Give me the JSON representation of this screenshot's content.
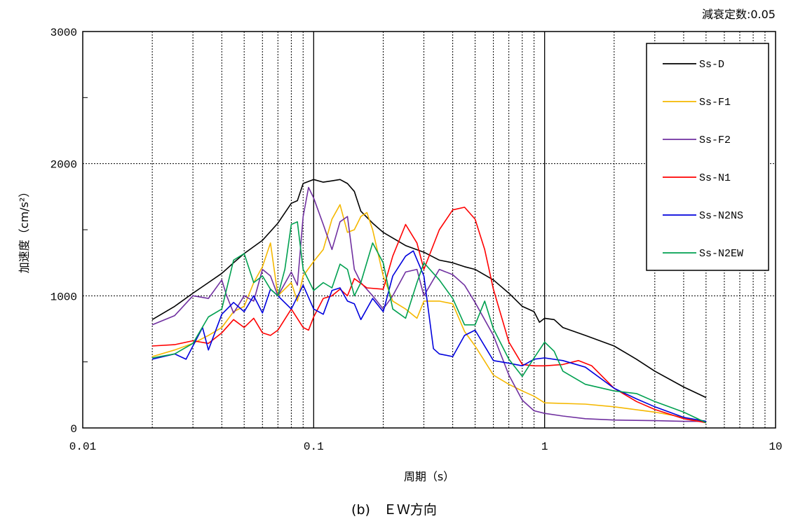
{
  "chart_data": {
    "type": "line",
    "title": "",
    "annotation": "減衰定数:0.05",
    "caption": "(b)　ＥＷ方向",
    "xlabel": "周期（s）",
    "ylabel": "加速度（cm/s²）",
    "xscale": "log",
    "xlim": [
      0.01,
      10
    ],
    "ylim": [
      0,
      3000
    ],
    "x_ticks": [
      "0.01",
      "0.1",
      "1",
      "10"
    ],
    "y_ticks": [
      "0",
      "1000",
      "2000",
      "3000"
    ],
    "grid": true,
    "legend_position": "top-right",
    "series": [
      {
        "name": "Ss-D",
        "color": "#000000",
        "points": [
          [
            0.02,
            820
          ],
          [
            0.025,
            920
          ],
          [
            0.03,
            1020
          ],
          [
            0.035,
            1100
          ],
          [
            0.04,
            1170
          ],
          [
            0.045,
            1250
          ],
          [
            0.05,
            1320
          ],
          [
            0.06,
            1420
          ],
          [
            0.07,
            1550
          ],
          [
            0.08,
            1700
          ],
          [
            0.085,
            1720
          ],
          [
            0.09,
            1850
          ],
          [
            0.1,
            1880
          ],
          [
            0.11,
            1860
          ],
          [
            0.12,
            1870
          ],
          [
            0.13,
            1880
          ],
          [
            0.14,
            1850
          ],
          [
            0.15,
            1790
          ],
          [
            0.16,
            1640
          ],
          [
            0.18,
            1550
          ],
          [
            0.2,
            1480
          ],
          [
            0.25,
            1380
          ],
          [
            0.3,
            1330
          ],
          [
            0.35,
            1270
          ],
          [
            0.4,
            1250
          ],
          [
            0.45,
            1220
          ],
          [
            0.5,
            1200
          ],
          [
            0.6,
            1120
          ],
          [
            0.7,
            1020
          ],
          [
            0.8,
            920
          ],
          [
            0.9,
            880
          ],
          [
            0.95,
            800
          ],
          [
            1.0,
            830
          ],
          [
            1.1,
            820
          ],
          [
            1.2,
            760
          ],
          [
            1.5,
            700
          ],
          [
            2.0,
            620
          ],
          [
            2.5,
            520
          ],
          [
            3.0,
            430
          ],
          [
            4.0,
            310
          ],
          [
            5.0,
            230
          ]
        ]
      },
      {
        "name": "Ss-F1",
        "color": "#f5b800",
        "points": [
          [
            0.02,
            540
          ],
          [
            0.025,
            590
          ],
          [
            0.03,
            640
          ],
          [
            0.035,
            700
          ],
          [
            0.04,
            760
          ],
          [
            0.045,
            880
          ],
          [
            0.05,
            920
          ],
          [
            0.055,
            1100
          ],
          [
            0.06,
            1220
          ],
          [
            0.065,
            1400
          ],
          [
            0.07,
            1000
          ],
          [
            0.08,
            1100
          ],
          [
            0.085,
            960
          ],
          [
            0.09,
            1150
          ],
          [
            0.1,
            1260
          ],
          [
            0.11,
            1350
          ],
          [
            0.12,
            1580
          ],
          [
            0.13,
            1690
          ],
          [
            0.14,
            1480
          ],
          [
            0.15,
            1500
          ],
          [
            0.16,
            1600
          ],
          [
            0.17,
            1630
          ],
          [
            0.18,
            1500
          ],
          [
            0.2,
            1150
          ],
          [
            0.22,
            960
          ],
          [
            0.25,
            900
          ],
          [
            0.28,
            830
          ],
          [
            0.3,
            960
          ],
          [
            0.35,
            960
          ],
          [
            0.4,
            940
          ],
          [
            0.45,
            730
          ],
          [
            0.5,
            620
          ],
          [
            0.6,
            400
          ],
          [
            0.7,
            330
          ],
          [
            0.8,
            280
          ],
          [
            0.9,
            240
          ],
          [
            1.0,
            190
          ],
          [
            1.5,
            180
          ],
          [
            2.0,
            160
          ],
          [
            3.0,
            120
          ],
          [
            4.0,
            80
          ],
          [
            5.0,
            40
          ]
        ]
      },
      {
        "name": "Ss-F2",
        "color": "#7030a0",
        "points": [
          [
            0.02,
            780
          ],
          [
            0.025,
            850
          ],
          [
            0.03,
            1000
          ],
          [
            0.035,
            980
          ],
          [
            0.04,
            1120
          ],
          [
            0.042,
            1000
          ],
          [
            0.045,
            870
          ],
          [
            0.05,
            1000
          ],
          [
            0.055,
            960
          ],
          [
            0.06,
            1200
          ],
          [
            0.065,
            1150
          ],
          [
            0.07,
            1000
          ],
          [
            0.08,
            1180
          ],
          [
            0.085,
            1080
          ],
          [
            0.09,
            1600
          ],
          [
            0.095,
            1820
          ],
          [
            0.1,
            1740
          ],
          [
            0.11,
            1540
          ],
          [
            0.12,
            1350
          ],
          [
            0.13,
            1560
          ],
          [
            0.14,
            1600
          ],
          [
            0.15,
            1200
          ],
          [
            0.16,
            1100
          ],
          [
            0.18,
            1000
          ],
          [
            0.2,
            900
          ],
          [
            0.22,
            1000
          ],
          [
            0.25,
            1180
          ],
          [
            0.28,
            1200
          ],
          [
            0.3,
            1000
          ],
          [
            0.35,
            1200
          ],
          [
            0.4,
            1160
          ],
          [
            0.45,
            1080
          ],
          [
            0.5,
            950
          ],
          [
            0.6,
            700
          ],
          [
            0.7,
            400
          ],
          [
            0.8,
            210
          ],
          [
            0.9,
            130
          ],
          [
            1.0,
            110
          ],
          [
            1.2,
            90
          ],
          [
            1.5,
            70
          ],
          [
            2.0,
            60
          ],
          [
            3.0,
            55
          ],
          [
            4.0,
            50
          ],
          [
            5.0,
            50
          ]
        ]
      },
      {
        "name": "Ss-N1",
        "color": "#ff0000",
        "points": [
          [
            0.02,
            620
          ],
          [
            0.025,
            630
          ],
          [
            0.03,
            660
          ],
          [
            0.035,
            640
          ],
          [
            0.04,
            720
          ],
          [
            0.045,
            820
          ],
          [
            0.05,
            760
          ],
          [
            0.055,
            830
          ],
          [
            0.06,
            720
          ],
          [
            0.065,
            700
          ],
          [
            0.07,
            740
          ],
          [
            0.08,
            900
          ],
          [
            0.09,
            760
          ],
          [
            0.095,
            740
          ],
          [
            0.1,
            840
          ],
          [
            0.11,
            980
          ],
          [
            0.12,
            1000
          ],
          [
            0.13,
            1050
          ],
          [
            0.14,
            1000
          ],
          [
            0.15,
            1130
          ],
          [
            0.17,
            1060
          ],
          [
            0.2,
            1050
          ],
          [
            0.22,
            1300
          ],
          [
            0.25,
            1540
          ],
          [
            0.28,
            1400
          ],
          [
            0.3,
            1200
          ],
          [
            0.35,
            1500
          ],
          [
            0.4,
            1650
          ],
          [
            0.45,
            1670
          ],
          [
            0.5,
            1580
          ],
          [
            0.55,
            1350
          ],
          [
            0.6,
            1050
          ],
          [
            0.7,
            650
          ],
          [
            0.8,
            480
          ],
          [
            0.9,
            470
          ],
          [
            1.0,
            470
          ],
          [
            1.2,
            480
          ],
          [
            1.4,
            510
          ],
          [
            1.6,
            470
          ],
          [
            2.0,
            300
          ],
          [
            2.5,
            200
          ],
          [
            3.0,
            140
          ],
          [
            4.0,
            70
          ],
          [
            5.0,
            40
          ]
        ]
      },
      {
        "name": "Ss-N2NS",
        "color": "#0000dd",
        "points": [
          [
            0.02,
            520
          ],
          [
            0.025,
            560
          ],
          [
            0.028,
            520
          ],
          [
            0.03,
            620
          ],
          [
            0.033,
            760
          ],
          [
            0.035,
            590
          ],
          [
            0.04,
            860
          ],
          [
            0.045,
            950
          ],
          [
            0.05,
            880
          ],
          [
            0.055,
            1000
          ],
          [
            0.06,
            870
          ],
          [
            0.065,
            1050
          ],
          [
            0.07,
            1000
          ],
          [
            0.08,
            900
          ],
          [
            0.09,
            1080
          ],
          [
            0.1,
            900
          ],
          [
            0.11,
            860
          ],
          [
            0.12,
            1040
          ],
          [
            0.13,
            1060
          ],
          [
            0.14,
            960
          ],
          [
            0.15,
            940
          ],
          [
            0.16,
            820
          ],
          [
            0.18,
            980
          ],
          [
            0.2,
            880
          ],
          [
            0.22,
            1150
          ],
          [
            0.25,
            1300
          ],
          [
            0.27,
            1340
          ],
          [
            0.3,
            1150
          ],
          [
            0.33,
            600
          ],
          [
            0.35,
            560
          ],
          [
            0.4,
            540
          ],
          [
            0.45,
            700
          ],
          [
            0.5,
            740
          ],
          [
            0.6,
            510
          ],
          [
            0.7,
            490
          ],
          [
            0.8,
            470
          ],
          [
            0.9,
            520
          ],
          [
            1.0,
            530
          ],
          [
            1.2,
            510
          ],
          [
            1.5,
            460
          ],
          [
            2.0,
            300
          ],
          [
            2.5,
            220
          ],
          [
            3.0,
            160
          ],
          [
            4.0,
            80
          ],
          [
            5.0,
            50
          ]
        ]
      },
      {
        "name": "Ss-N2EW",
        "color": "#00a050",
        "points": [
          [
            0.02,
            530
          ],
          [
            0.025,
            560
          ],
          [
            0.03,
            640
          ],
          [
            0.035,
            840
          ],
          [
            0.04,
            900
          ],
          [
            0.045,
            1270
          ],
          [
            0.05,
            1320
          ],
          [
            0.055,
            1100
          ],
          [
            0.06,
            1150
          ],
          [
            0.065,
            1050
          ],
          [
            0.07,
            1000
          ],
          [
            0.075,
            1200
          ],
          [
            0.08,
            1540
          ],
          [
            0.085,
            1560
          ],
          [
            0.09,
            1200
          ],
          [
            0.1,
            1040
          ],
          [
            0.11,
            1100
          ],
          [
            0.12,
            1060
          ],
          [
            0.13,
            1240
          ],
          [
            0.14,
            1200
          ],
          [
            0.15,
            1000
          ],
          [
            0.16,
            1100
          ],
          [
            0.18,
            1400
          ],
          [
            0.2,
            1250
          ],
          [
            0.22,
            900
          ],
          [
            0.25,
            830
          ],
          [
            0.28,
            1100
          ],
          [
            0.3,
            1250
          ],
          [
            0.35,
            1120
          ],
          [
            0.4,
            980
          ],
          [
            0.45,
            780
          ],
          [
            0.5,
            780
          ],
          [
            0.55,
            960
          ],
          [
            0.6,
            750
          ],
          [
            0.7,
            520
          ],
          [
            0.8,
            390
          ],
          [
            0.9,
            530
          ],
          [
            1.0,
            650
          ],
          [
            1.1,
            580
          ],
          [
            1.2,
            430
          ],
          [
            1.5,
            330
          ],
          [
            2.0,
            280
          ],
          [
            2.5,
            260
          ],
          [
            3.0,
            200
          ],
          [
            4.0,
            120
          ],
          [
            5.0,
            40
          ]
        ]
      }
    ]
  }
}
